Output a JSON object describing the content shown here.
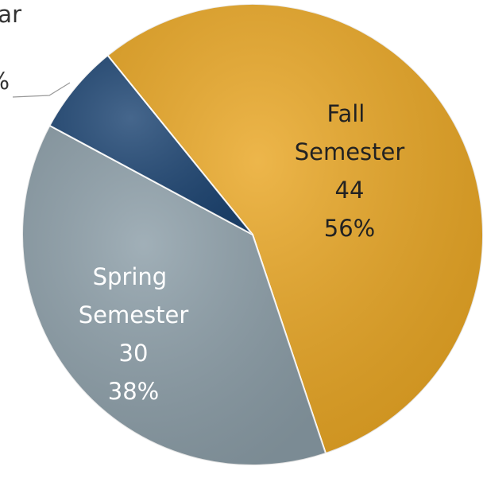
{
  "chart_data": {
    "type": "pie",
    "categories": [
      "Fall Semester",
      "Spring Semester",
      "ar"
    ],
    "values": [
      44,
      30,
      5
    ],
    "percent_labels": [
      "56%",
      "38%",
      "%"
    ],
    "colors": [
      "#e9a623",
      "#8c9ea8",
      "#1d4573"
    ]
  }
}
